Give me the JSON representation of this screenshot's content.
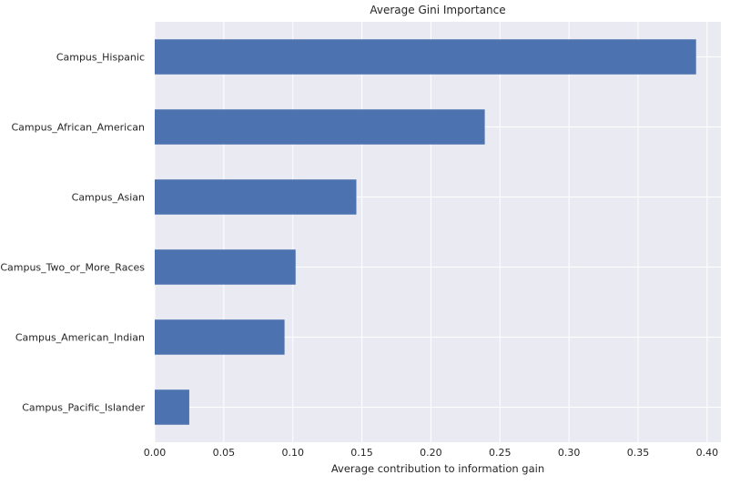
{
  "chart_data": {
    "type": "bar",
    "orientation": "horizontal",
    "title": "Average Gini Importance",
    "xlabel": "Average contribution to information gain",
    "ylabel": "",
    "categories": [
      "Campus_Hispanic",
      "Campus_African_American",
      "Campus_Asian",
      "Campus_Two_or_More_Races",
      "Campus_American_Indian",
      "Campus_Pacific_Islander"
    ],
    "values": [
      0.392,
      0.239,
      0.146,
      0.102,
      0.094,
      0.025
    ],
    "xlim": [
      0,
      0.41
    ],
    "xticks": [
      "0.00",
      "0.05",
      "0.10",
      "0.15",
      "0.20",
      "0.25",
      "0.30",
      "0.35",
      "0.40"
    ],
    "grid": true,
    "colors": {
      "bar": "#4c72b0",
      "background": "#eaeaf2",
      "grid": "#ffffff",
      "text": "#262626"
    }
  }
}
